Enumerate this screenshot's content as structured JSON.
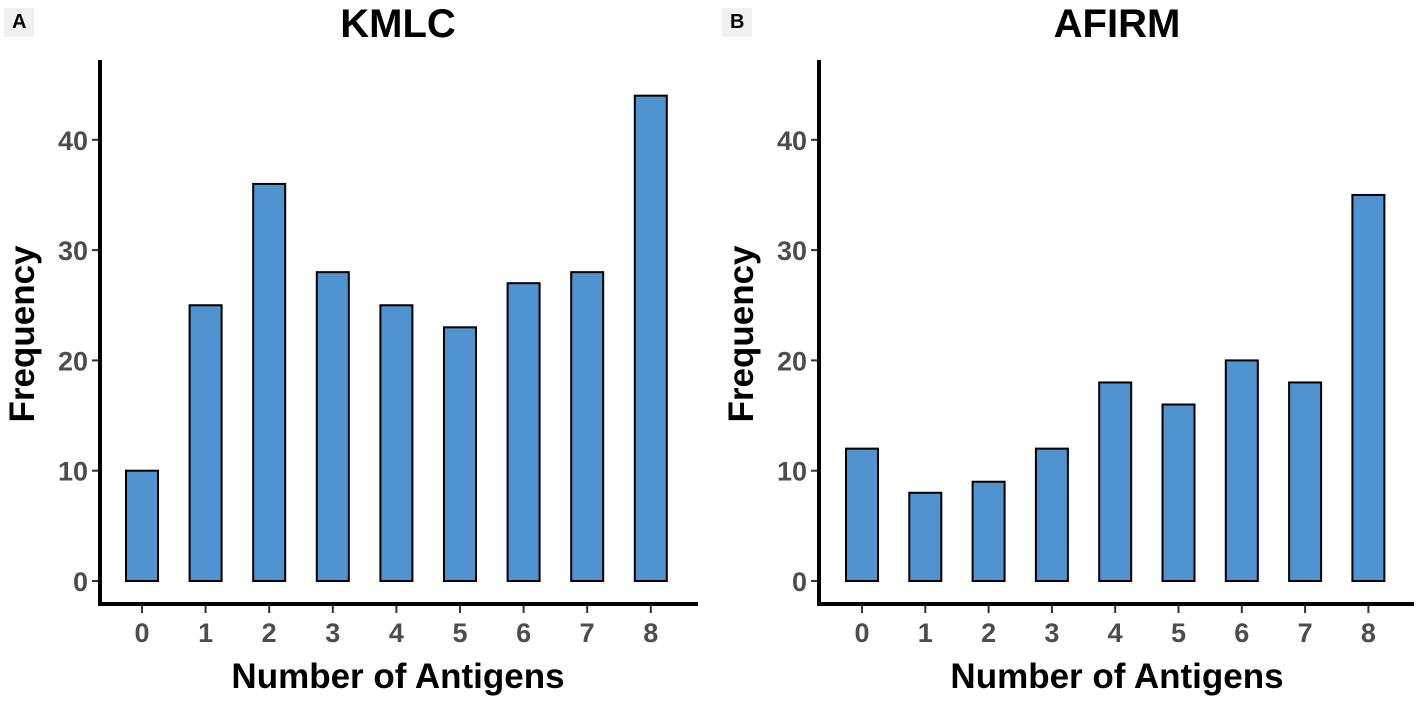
{
  "figure": {
    "panels": [
      "A",
      "B"
    ]
  },
  "colors": {
    "bar_fill": "#4f93d0",
    "bar_stroke": "#000000",
    "tick_label": "#4d4d4d"
  },
  "chart_data": [
    {
      "type": "bar",
      "title": "KMLC",
      "xlabel": "Number of Antigens",
      "ylabel": "Frequency",
      "categories": [
        "0",
        "1",
        "2",
        "3",
        "4",
        "5",
        "6",
        "7",
        "8"
      ],
      "values": [
        10,
        25,
        36,
        28,
        25,
        23,
        27,
        28,
        44
      ],
      "ylim": [
        0,
        48
      ],
      "yticks": [
        0,
        10,
        20,
        30,
        40
      ],
      "grid": false
    },
    {
      "type": "bar",
      "title": "AFIRM",
      "xlabel": "Number of Antigens",
      "ylabel": "Frequency",
      "categories": [
        "0",
        "1",
        "2",
        "3",
        "4",
        "5",
        "6",
        "7",
        "8"
      ],
      "values": [
        12,
        8,
        9,
        12,
        18,
        16,
        20,
        18,
        35
      ],
      "ylim": [
        0,
        48
      ],
      "yticks": [
        0,
        10,
        20,
        30,
        40
      ],
      "grid": false
    }
  ]
}
